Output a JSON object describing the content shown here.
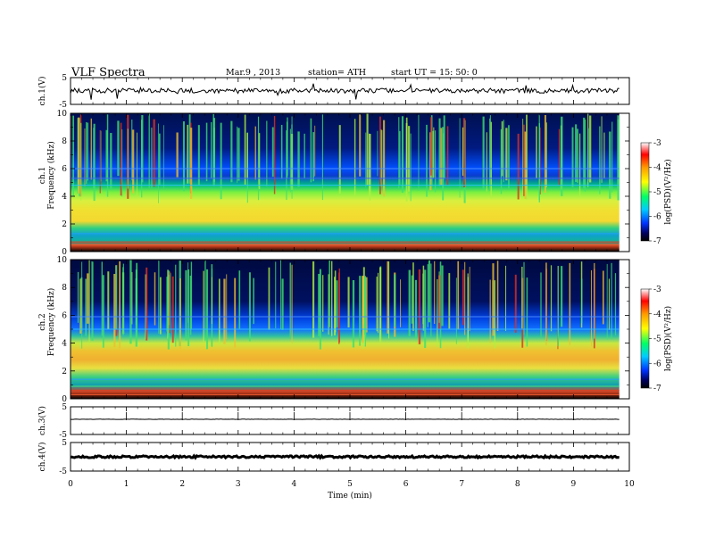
{
  "header": {
    "title": "VLF  Spectra",
    "date": "Mar.9  , 2013",
    "station": "station= ATH",
    "start_ut": "start  UT  =    15: 50: 0"
  },
  "chart_data": [
    {
      "type": "line",
      "ylabel": "ch.1(V)",
      "ylim": [
        -5,
        5
      ],
      "yticks": [
        "5",
        "-5"
      ],
      "xlim": [
        0,
        10
      ],
      "approx_level": 0.1
    },
    {
      "type": "heatmap",
      "ylabel_top": "ch.1",
      "ylabel": "Frequency  (kHz)",
      "ylim": [
        0,
        10
      ],
      "yticks": [
        "0",
        "2",
        "4",
        "6",
        "8",
        "10"
      ],
      "xlim": [
        0,
        10
      ],
      "colorbar": {
        "label": "log(PSD)(V²/Hz)",
        "range": [
          -7,
          -3
        ],
        "ticks": [
          "-3",
          "-4",
          "-5",
          "-6",
          "-7"
        ]
      }
    },
    {
      "type": "heatmap",
      "ylabel_top": "ch.2",
      "ylabel": "Frequency  (kHz)",
      "ylim": [
        0,
        10
      ],
      "yticks": [
        "0",
        "2",
        "4",
        "6",
        "8",
        "10"
      ],
      "xlim": [
        0,
        10
      ],
      "colorbar": {
        "label": "log(PSD)(V²/Hz)",
        "range": [
          -7,
          -3
        ],
        "ticks": [
          "-3",
          "-4",
          "-5",
          "-6",
          "-7"
        ]
      }
    },
    {
      "type": "line",
      "ylabel": "ch.3(V)",
      "ylim": [
        -5,
        5
      ],
      "yticks": [
        "5",
        "-5"
      ],
      "xlim": [
        0,
        10
      ],
      "approx_level": 0.5
    },
    {
      "type": "line",
      "ylabel": "ch.4(V)",
      "ylim": [
        -5,
        5
      ],
      "yticks": [
        "5",
        "-5"
      ],
      "xlim": [
        0,
        10
      ],
      "approx_level": 0.0
    }
  ],
  "x_axis": {
    "label": "Time  (min)",
    "ticks": [
      "0",
      "1",
      "2",
      "3",
      "4",
      "5",
      "6",
      "7",
      "8",
      "9",
      "10"
    ],
    "data_end": 9.82
  },
  "colors": {
    "background": "#ffffff",
    "trace": "#000000",
    "scale_low": "#000000",
    "scale_high": "#ff0000"
  }
}
